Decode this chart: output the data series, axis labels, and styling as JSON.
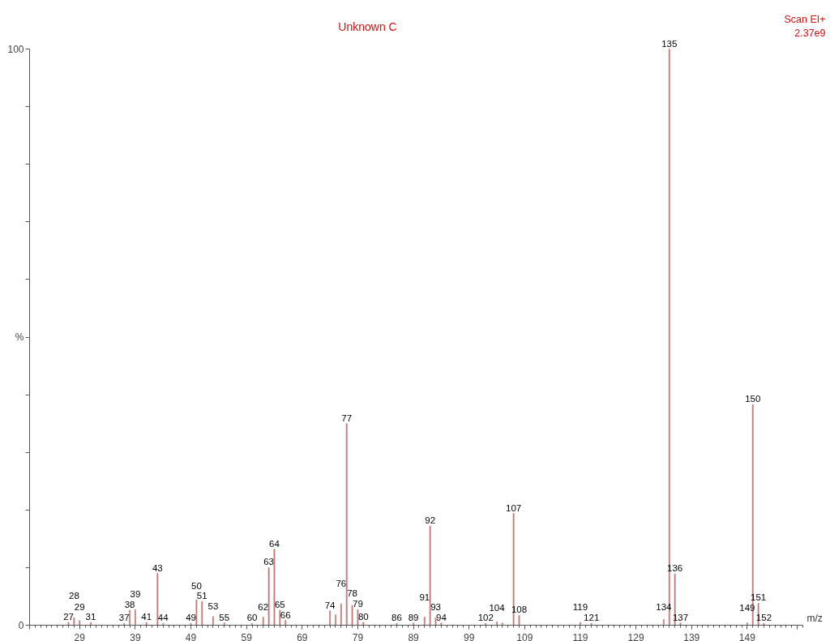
{
  "chart_data": {
    "type": "bar",
    "title": "Unknown C",
    "xlabel": "m/z",
    "x": [
      27,
      28,
      29,
      31,
      37,
      38,
      39,
      41,
      43,
      44,
      49,
      50,
      51,
      53,
      55,
      60,
      62,
      63,
      64,
      65,
      66,
      74,
      75,
      76,
      77,
      78,
      79,
      80,
      86,
      89,
      91,
      92,
      93,
      94,
      102,
      104,
      105,
      107,
      108,
      119,
      121,
      134,
      135,
      136,
      137,
      149,
      150,
      151,
      152
    ],
    "values": [
      0.5,
      1.3,
      0.8,
      0.5,
      0.3,
      2.6,
      2.7,
      0.5,
      9.0,
      0.3,
      0.3,
      4.4,
      4.1,
      1.5,
      0.4,
      0.3,
      1.4,
      10.0,
      13.2,
      2.6,
      0.8,
      2.5,
      1.8,
      3.7,
      35.0,
      3.4,
      2.7,
      0.5,
      0.3,
      0.4,
      1.4,
      17.2,
      1.3,
      0.4,
      0.3,
      0.6,
      0.4,
      19.4,
      1.7,
      0.5,
      0.3,
      1.0,
      100,
      8.9,
      0.4,
      0.4,
      38.3,
      3.8,
      0.3
    ],
    "annotations": [
      "Scan EI+",
      "2.37e9",
      {
        "text": "27",
        "x": 27,
        "y": 0.5
      },
      {
        "text": "28",
        "x": 28,
        "y": 1.3
      },
      {
        "text": "29",
        "x": 29,
        "y": 0.8
      },
      {
        "text": "31",
        "x": 31,
        "y": 0.5
      },
      {
        "text": "37",
        "x": 37,
        "y": 0.3
      },
      {
        "text": "38",
        "x": 38,
        "y": 2.6
      },
      {
        "text": "39",
        "x": 39,
        "y": 2.7
      },
      {
        "text": "41",
        "x": 41,
        "y": 0.5
      },
      {
        "text": "43",
        "x": 43,
        "y": 9.0
      },
      {
        "text": "44",
        "x": 44,
        "y": 0.3
      },
      {
        "text": "49",
        "x": 49,
        "y": 0.3
      },
      {
        "text": "50",
        "x": 50,
        "y": 4.4
      },
      {
        "text": "51",
        "x": 51,
        "y": 4.1
      },
      {
        "text": "53",
        "x": 53,
        "y": 1.5
      },
      {
        "text": "55",
        "x": 55,
        "y": 0.4
      },
      {
        "text": "60",
        "x": 60,
        "y": 0.3
      },
      {
        "text": "62",
        "x": 62,
        "y": 1.4
      },
      {
        "text": "63",
        "x": 63,
        "y": 10.0
      },
      {
        "text": "64",
        "x": 64,
        "y": 13.2
      },
      {
        "text": "65",
        "x": 65,
        "y": 2.6
      },
      {
        "text": "66",
        "x": 66,
        "y": 0.8
      },
      {
        "text": "74",
        "x": 74,
        "y": 2.5
      },
      {
        "text": "76",
        "x": 76,
        "y": 3.7
      },
      {
        "text": "77",
        "x": 77,
        "y": 35.0
      },
      {
        "text": "78",
        "x": 78,
        "y": 3.4
      },
      {
        "text": "79",
        "x": 79,
        "y": 2.7
      },
      {
        "text": "80",
        "x": 80,
        "y": 0.5
      },
      {
        "text": "86",
        "x": 86,
        "y": 0.3
      },
      {
        "text": "89",
        "x": 89,
        "y": 0.4
      },
      {
        "text": "91",
        "x": 91,
        "y": 1.4
      },
      {
        "text": "92",
        "x": 92,
        "y": 17.2
      },
      {
        "text": "93",
        "x": 93,
        "y": 1.3
      },
      {
        "text": "94",
        "x": 94,
        "y": 0.4
      },
      {
        "text": "102",
        "x": 102,
        "y": 0.3
      },
      {
        "text": "104",
        "x": 104,
        "y": 0.6
      },
      {
        "text": "107",
        "x": 107,
        "y": 19.4
      },
      {
        "text": "108",
        "x": 108,
        "y": 1.7
      },
      {
        "text": "119",
        "x": 119,
        "y": 0.5
      },
      {
        "text": "121",
        "x": 121,
        "y": 0.3
      },
      {
        "text": "134",
        "x": 134,
        "y": 1.0
      },
      {
        "text": "135",
        "x": 135,
        "y": 100
      },
      {
        "text": "136",
        "x": 136,
        "y": 8.9
      },
      {
        "text": "137",
        "x": 137,
        "y": 0.4
      },
      {
        "text": "149",
        "x": 149,
        "y": 0.4
      },
      {
        "text": "150",
        "x": 150,
        "y": 38.3
      },
      {
        "text": "151",
        "x": 151,
        "y": 3.8
      },
      {
        "text": "152",
        "x": 152,
        "y": 0.3
      }
    ],
    "color": "#c07b7b",
    "xlim": [
      20,
      159
    ],
    "ylim": [
      0,
      100
    ],
    "xticks": [
      {
        "value": 20,
        "label": null
      },
      {
        "value": 29,
        "label": "29"
      },
      {
        "value": 39,
        "label": "39"
      },
      {
        "value": 49,
        "label": "49"
      },
      {
        "value": 59,
        "label": "59"
      },
      {
        "value": 69,
        "label": "69"
      },
      {
        "value": 79,
        "label": "79"
      },
      {
        "value": 89,
        "label": "89"
      },
      {
        "value": 99,
        "label": "99"
      },
      {
        "value": 109,
        "label": "109"
      },
      {
        "value": 119,
        "label": "119"
      },
      {
        "value": 129,
        "label": "129"
      },
      {
        "value": 139,
        "label": "139"
      },
      {
        "value": 149,
        "label": "149"
      },
      {
        "value": 158,
        "label": null
      }
    ],
    "yticks": [
      0,
      {
        "value": 10,
        "label": null
      },
      {
        "value": 20,
        "label": null
      },
      {
        "value": 30,
        "label": null
      },
      {
        "value": 40,
        "label": null
      },
      {
        "value": 50,
        "label": "%"
      },
      {
        "value": 60,
        "label": null
      },
      {
        "value": 70,
        "label": null
      },
      {
        "value": 80,
        "label": null
      },
      {
        "value": 90,
        "label": null
      },
      100
    ],
    "grid": false
  }
}
